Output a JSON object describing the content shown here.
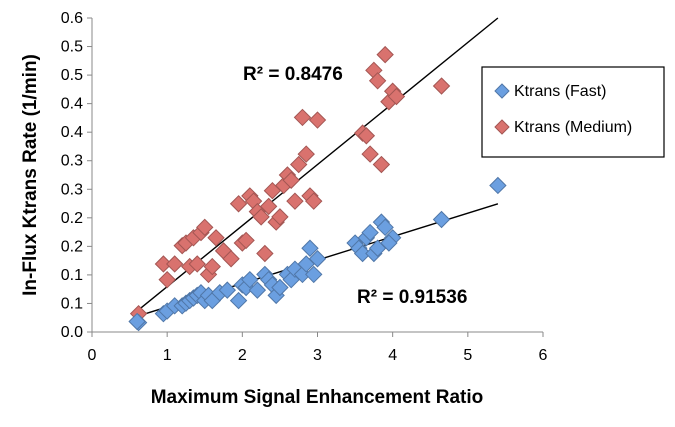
{
  "chart_data": {
    "type": "scatter",
    "title": "",
    "xlabel": "Maximum Signal Enhancement Ratio",
    "ylabel": "In-Flux Ktrans Rate (1/min)",
    "xlim": [
      0,
      6
    ],
    "ylim": [
      0,
      0.6
    ],
    "x_ticks": [
      "0",
      "1",
      "2",
      "3",
      "4",
      "5",
      "6"
    ],
    "y_ticks": [
      "0.0",
      "0.1",
      "0.1",
      "0.2",
      "0.2",
      "0.3",
      "0.3",
      "0.4",
      "0.4",
      "0.5",
      "0.5",
      "0.6"
    ],
    "grid": false,
    "legend_position": "right",
    "series": [
      {
        "name": "Ktrans (Fast)",
        "color": "#6b9fe0",
        "points": [
          [
            0.62,
            0.018
          ],
          [
            0.6,
            0.02
          ],
          [
            0.95,
            0.035
          ],
          [
            1.0,
            0.04
          ],
          [
            1.1,
            0.05
          ],
          [
            1.2,
            0.05
          ],
          [
            1.25,
            0.055
          ],
          [
            1.3,
            0.06
          ],
          [
            1.35,
            0.065
          ],
          [
            1.4,
            0.07
          ],
          [
            1.45,
            0.075
          ],
          [
            1.5,
            0.06
          ],
          [
            1.55,
            0.07
          ],
          [
            1.6,
            0.06
          ],
          [
            1.7,
            0.075
          ],
          [
            1.8,
            0.08
          ],
          [
            1.95,
            0.06
          ],
          [
            2.0,
            0.09
          ],
          [
            2.05,
            0.085
          ],
          [
            2.1,
            0.1
          ],
          [
            2.2,
            0.08
          ],
          [
            2.3,
            0.11
          ],
          [
            2.35,
            0.1
          ],
          [
            2.4,
            0.09
          ],
          [
            2.45,
            0.07
          ],
          [
            2.5,
            0.085
          ],
          [
            2.6,
            0.11
          ],
          [
            2.65,
            0.1
          ],
          [
            2.7,
            0.12
          ],
          [
            2.8,
            0.11
          ],
          [
            2.85,
            0.13
          ],
          [
            2.9,
            0.16
          ],
          [
            2.95,
            0.11
          ],
          [
            3.0,
            0.14
          ],
          [
            3.5,
            0.17
          ],
          [
            3.55,
            0.16
          ],
          [
            3.6,
            0.15
          ],
          [
            3.65,
            0.18
          ],
          [
            3.7,
            0.19
          ],
          [
            3.75,
            0.15
          ],
          [
            3.8,
            0.16
          ],
          [
            3.85,
            0.21
          ],
          [
            3.9,
            0.2
          ],
          [
            4.0,
            0.18
          ],
          [
            3.95,
            0.17
          ],
          [
            4.65,
            0.215
          ],
          [
            5.4,
            0.28
          ]
        ]
      },
      {
        "name": "Ktrans (Medium)",
        "color": "#d9726e",
        "points": [
          [
            0.62,
            0.035
          ],
          [
            0.95,
            0.13
          ],
          [
            1.0,
            0.1
          ],
          [
            1.1,
            0.13
          ],
          [
            1.2,
            0.165
          ],
          [
            1.25,
            0.17
          ],
          [
            1.3,
            0.125
          ],
          [
            1.35,
            0.18
          ],
          [
            1.4,
            0.13
          ],
          [
            1.45,
            0.19
          ],
          [
            1.5,
            0.2
          ],
          [
            1.55,
            0.11
          ],
          [
            1.6,
            0.125
          ],
          [
            1.65,
            0.18
          ],
          [
            1.75,
            0.155
          ],
          [
            1.85,
            0.14
          ],
          [
            1.95,
            0.245
          ],
          [
            2.0,
            0.17
          ],
          [
            2.05,
            0.175
          ],
          [
            2.1,
            0.26
          ],
          [
            2.15,
            0.25
          ],
          [
            2.2,
            0.23
          ],
          [
            2.25,
            0.22
          ],
          [
            2.3,
            0.15
          ],
          [
            2.35,
            0.24
          ],
          [
            2.4,
            0.27
          ],
          [
            2.45,
            0.21
          ],
          [
            2.5,
            0.22
          ],
          [
            2.55,
            0.28
          ],
          [
            2.6,
            0.3
          ],
          [
            2.65,
            0.29
          ],
          [
            2.7,
            0.25
          ],
          [
            2.75,
            0.32
          ],
          [
            2.8,
            0.41
          ],
          [
            2.85,
            0.34
          ],
          [
            2.9,
            0.26
          ],
          [
            2.95,
            0.25
          ],
          [
            3.0,
            0.405
          ],
          [
            3.6,
            0.38
          ],
          [
            3.65,
            0.375
          ],
          [
            3.7,
            0.34
          ],
          [
            3.75,
            0.5
          ],
          [
            3.8,
            0.48
          ],
          [
            3.85,
            0.32
          ],
          [
            3.9,
            0.53
          ],
          [
            3.95,
            0.44
          ],
          [
            4.0,
            0.46
          ],
          [
            4.05,
            0.45
          ],
          [
            4.65,
            0.47
          ]
        ]
      }
    ],
    "trendlines": [
      {
        "series": "Ktrans (Medium)",
        "x": [
          0.6,
          5.4
        ],
        "y": [
          0.04,
          0.6
        ],
        "r2_label": "R² = 0.8476"
      },
      {
        "series": "Ktrans (Fast)",
        "x": [
          0.6,
          5.4
        ],
        "y": [
          0.03,
          0.245
        ],
        "r2_label": "R² = 0.91536"
      }
    ]
  }
}
